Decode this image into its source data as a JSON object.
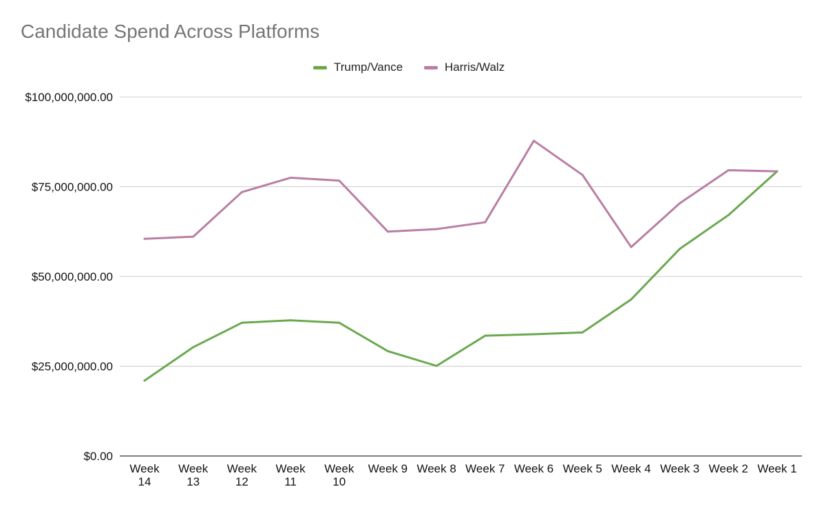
{
  "chart_data": {
    "type": "line",
    "title": "Candidate Spend Across Platforms",
    "xlabel": "",
    "ylabel": "",
    "categories": [
      "Week 14",
      "Week 13",
      "Week 12",
      "Week 11",
      "Week 10",
      "Week 9",
      "Week 8",
      "Week 7",
      "Week 6",
      "Week 5",
      "Week 4",
      "Week 3",
      "Week 2",
      "Week 1"
    ],
    "y_ticks": [
      "$0.00",
      "$25,000,000.00",
      "$50,000,000.00",
      "$75,000,000.00",
      "$100,000,000.00"
    ],
    "ylim": [
      0,
      100000000
    ],
    "grid": true,
    "legend_position": "top-center",
    "series": [
      {
        "name": "Trump/Vance",
        "color": "#6aa84f",
        "values": [
          21000000,
          30300000,
          37100000,
          37800000,
          37100000,
          29200000,
          25100000,
          33500000,
          33900000,
          34400000,
          43600000,
          57700000,
          67100000,
          79300000
        ]
      },
      {
        "name": "Harris/Walz",
        "color": "#b97ea3",
        "values": [
          60500000,
          61100000,
          73500000,
          77500000,
          76700000,
          62500000,
          63200000,
          65100000,
          87800000,
          78300000,
          58200000,
          70400000,
          79600000,
          79300000
        ]
      }
    ]
  }
}
